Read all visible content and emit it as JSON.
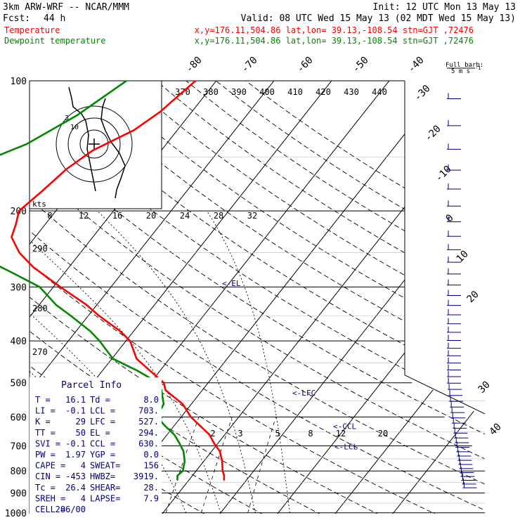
{
  "header": {
    "model": "3km ARW-WRF -- NCAR/MMM",
    "init": "Init: 12 UTC Mon 13 May 13",
    "fcst_label": "Fcst:",
    "fcst_value": "44 h",
    "valid": "Valid: 08 UTC Wed 15 May 13 (02 MDT Wed 15 May 13)",
    "temp_name": "Temperature",
    "temp_info": "x,y=176.11,504.86   lat,lon= 39.13,-108.54   stn=GJT ,72476",
    "dew_name": "Dewpoint temperature",
    "dew_info": "x,y=176.11,504.86   lat,lon= 39.13,-108.54   stn=GJT ,72476"
  },
  "colors": {
    "temperature": "#ff0000",
    "dewpoint": "#008800",
    "parcel_text": "#000080",
    "grid": "#000000"
  },
  "barb_label": {
    "line1": "Full barb:",
    "line2": "5 m s",
    "sup": "-1"
  },
  "inset_map": {
    "range_labels": [
      "3",
      "10"
    ]
  },
  "mixing_ratio_label": "kts",
  "parcel": {
    "title": "Parcel Info",
    "rows": [
      [
        "T   =",
        "16.1",
        "Td  =",
        "8.0"
      ],
      [
        "LI  =",
        "-0.1",
        "LCL =",
        "703."
      ],
      [
        "K   =",
        "29",
        "LFC =",
        "527."
      ],
      [
        "TT  =",
        "50",
        "EL  =",
        "294."
      ],
      [
        "SVI =",
        "-0.1",
        "CCL =",
        "630."
      ],
      [
        "PW  =",
        "1.97",
        "YGP =",
        "0.0"
      ],
      [
        "CAPE =",
        "4",
        "SWEAT=",
        "156"
      ],
      [
        "CIN  =",
        "-453",
        "HWBZ=",
        "3919."
      ],
      [
        "Tc   =",
        "26.4",
        "SHEAR=",
        "28."
      ],
      [
        "SREH =",
        "4",
        "LAPSE=",
        "7.9"
      ],
      [
        "CELL =",
        "286/00",
        "",
        ""
      ]
    ]
  },
  "chart_data": {
    "type": "line",
    "subtype": "skew-T log-p",
    "pressure_levels": [
      100,
      200,
      300,
      400,
      500,
      600,
      700,
      800,
      900,
      1000
    ],
    "isotherm_labels": [
      -80,
      -70,
      -60,
      -50,
      -40,
      -30,
      -20,
      -10,
      0,
      10,
      20,
      30,
      40
    ],
    "theta_labels": [
      370,
      380,
      390,
      400,
      410,
      420,
      430,
      440
    ],
    "theta_e_labels_left": [
      290,
      280,
      270
    ],
    "mixing_ratio_top": [
      8,
      12,
      16,
      20,
      24,
      28,
      32
    ],
    "mixing_ratio_bottom": [
      2,
      3,
      5,
      8,
      12,
      20
    ],
    "parcel_markers": [
      {
        "label": "<-EL",
        "p": 294
      },
      {
        "label": "<-LFC",
        "p": 527
      },
      {
        "label": "<-CCL",
        "p": 630
      },
      {
        "label": "<-LCL",
        "p": 703
      }
    ],
    "series": [
      {
        "name": "Temperature",
        "p": [
          840,
          820,
          800,
          760,
          720,
          690,
          660,
          630,
          600,
          560,
          520,
          500,
          470,
          440,
          400,
          380,
          350,
          330,
          300,
          270,
          250,
          230,
          215,
          200,
          180,
          160,
          145,
          130,
          118,
          108,
          100
        ],
        "temp": [
          16.1,
          15.5,
          14.6,
          13.2,
          11.4,
          9.3,
          7.4,
          4.6,
          1.7,
          -1.5,
          -6.4,
          -7.7,
          -11.6,
          -15.7,
          -19.3,
          -22.3,
          -28.1,
          -31.8,
          -38.8,
          -46.2,
          -50.6,
          -54.1,
          -55.1,
          -56.4,
          -55.1,
          -53.9,
          -51.9,
          -47.5,
          -45.5,
          -44.5,
          -43.6
        ]
      },
      {
        "name": "Dewpoint temperature",
        "p": [
          840,
          820,
          800,
          760,
          720,
          690,
          660,
          630,
          600,
          560,
          520,
          500,
          470,
          440,
          400,
          380,
          350,
          330,
          300,
          280,
          260,
          250,
          230,
          215,
          200,
          185,
          170,
          150,
          140,
          120,
          100
        ],
        "temp": [
          8.0,
          7.4,
          7.7,
          6.7,
          5.1,
          3.3,
          1.3,
          -1.5,
          -4.2,
          -4.8,
          -7.1,
          -8.7,
          -13.7,
          -19.8,
          -24.6,
          -27.5,
          -33.0,
          -37.1,
          -42.4,
          -48.5,
          -55.2,
          -61.3,
          -66.2,
          -68.1,
          -69.0,
          -69.1,
          -68.9,
          -68.0,
          -64.2,
          -59.4,
          -55.6
        ]
      }
    ]
  }
}
